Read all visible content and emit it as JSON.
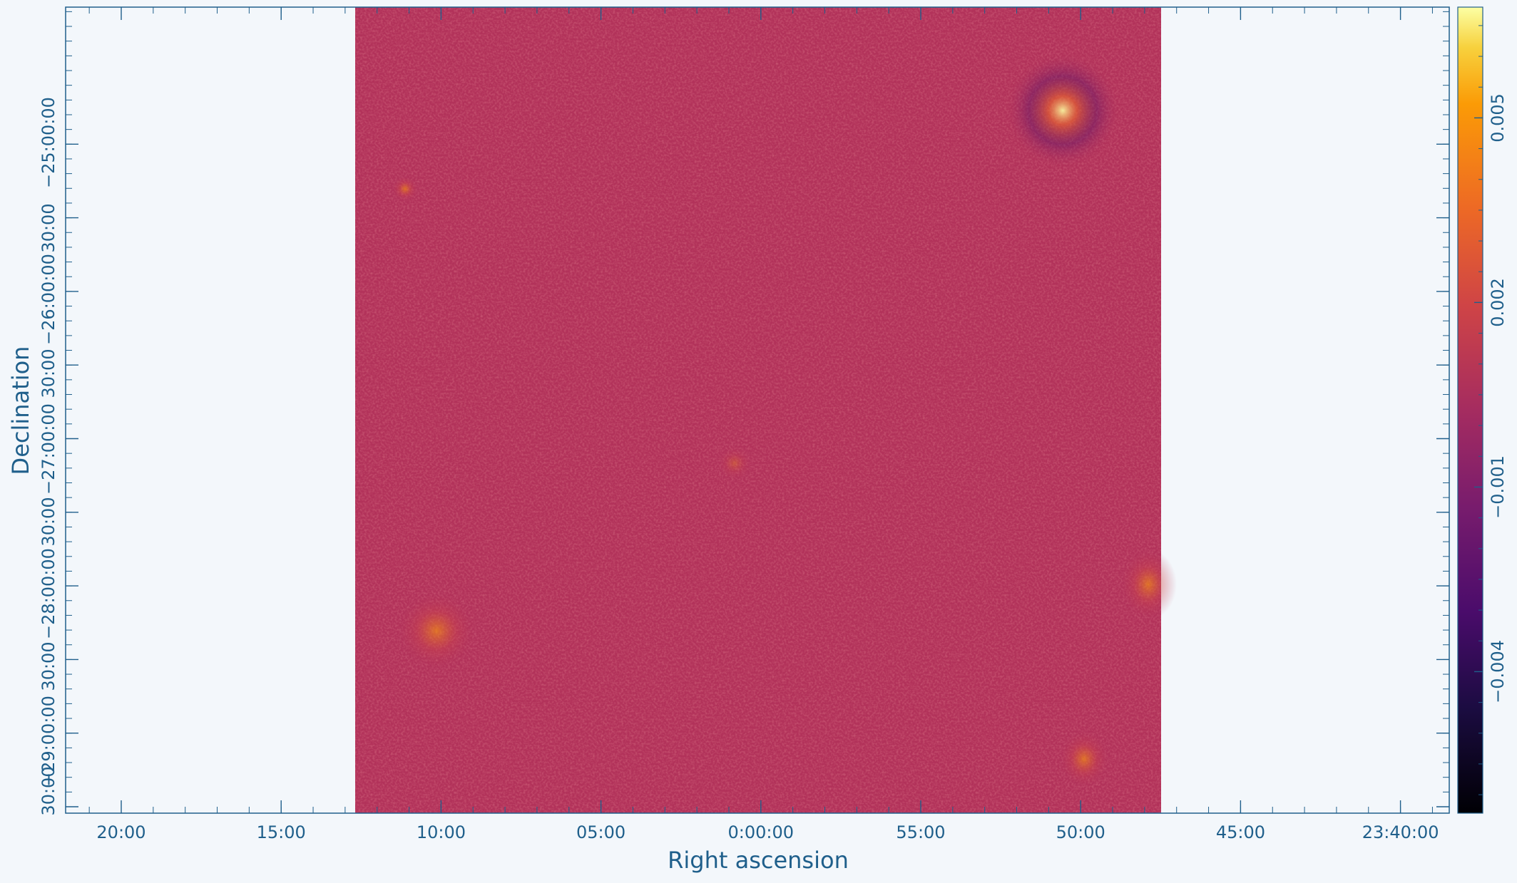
{
  "chart_data": {
    "type": "heatmap",
    "title": "",
    "xlabel": "Right ascension",
    "ylabel": "Declination",
    "x_ticks": [
      "20:00",
      "15:00",
      "10:00",
      "05:00",
      "0:00:00",
      "55:00",
      "50:00",
      "45:00",
      "23:40:00"
    ],
    "y_ticks": [
      "−29:00:00",
      "30:00",
      "−28:00:00",
      "30:00",
      "−27:00:00",
      "30:00",
      "−26:00:00",
      "30:00",
      "−25:00:00"
    ],
    "y_ticks_extra": [
      "30:00"
    ],
    "colorbar": {
      "ticks": [
        "0.005",
        "0.002",
        "−0.001",
        "−0.004"
      ],
      "tick_values": [
        0.005,
        0.002,
        -0.001,
        -0.004
      ],
      "range": [
        -0.0063,
        0.0068
      ],
      "colormap": "inferno"
    },
    "data_region": {
      "ra_range": [
        "0:12:35",
        "23:47:25"
      ],
      "dec_range": [
        "−29:45:00",
        "−24:15:00"
      ]
    },
    "grid": false,
    "legend": "none"
  },
  "colors": {
    "axis": "#1f5f8b",
    "background": "#f3f7fb",
    "map_base": "#b2325a"
  }
}
